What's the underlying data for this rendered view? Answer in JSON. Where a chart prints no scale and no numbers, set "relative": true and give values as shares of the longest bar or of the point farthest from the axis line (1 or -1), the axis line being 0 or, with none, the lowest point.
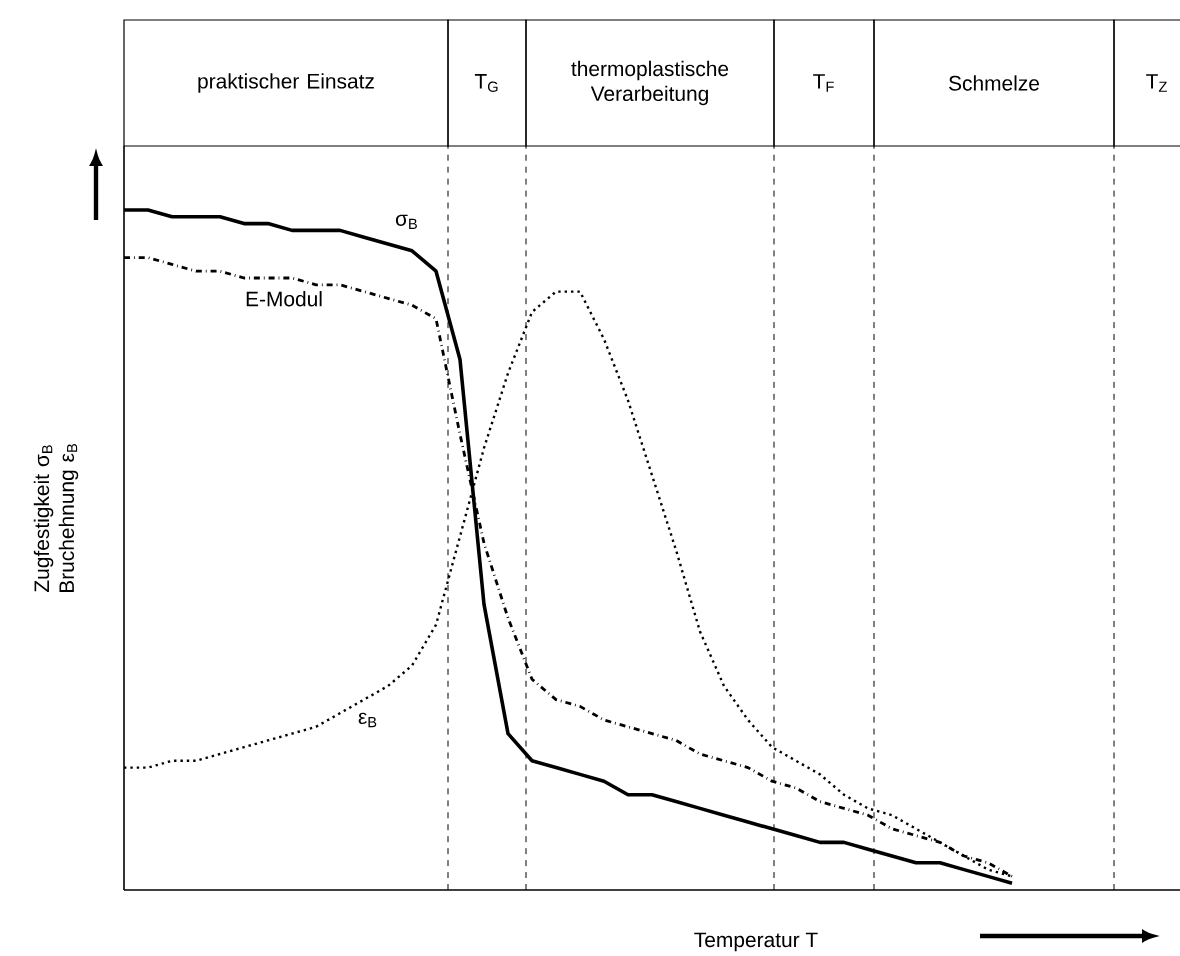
{
  "chart_data": {
    "type": "line",
    "relative": true,
    "xlabel": "Temperatur T",
    "ylabel": "Zugfestigkeit σ$_{B}$ Bruchehnung ε$_{B}$",
    "categories": [
      null,
      null,
      null,
      null,
      null,
      null,
      null,
      null,
      null,
      null,
      null,
      null,
      null,
      null,
      null,
      null,
      null,
      null,
      null,
      null,
      null,
      null,
      null,
      null,
      null,
      null,
      null,
      null,
      null,
      null,
      null,
      null,
      null,
      null,
      null,
      null,
      null,
      null,
      null,
      null,
      null,
      null,
      null,
      null
    ],
    "annotations": [
      "praktischer Einsatz",
      "T$_{G}$",
      "thermoplastische Verarbeitung",
      "T$_{F}$",
      "Schmelze",
      "T$_{Z}$"
    ],
    "series": [
      {
        "name": "σ$_{B}$",
        "color": "#000000",
        "line_style": "solid",
        "values": [
          1.0,
          1.0,
          0.99,
          0.99,
          0.99,
          0.98,
          0.98,
          0.97,
          0.97,
          0.97,
          0.96,
          0.95,
          0.94,
          0.91,
          0.78,
          0.42,
          0.23,
          0.19,
          0.18,
          0.17,
          0.16,
          0.14,
          0.14,
          0.13,
          0.12,
          0.11,
          0.1,
          0.09,
          0.08,
          0.07,
          0.07,
          0.06,
          0.05,
          0.04,
          0.04,
          0.03,
          0.02,
          0.01,
          null,
          null,
          null,
          null,
          null,
          null
        ]
      },
      {
        "name": "E-Modul",
        "color": "#000000",
        "line_style": "dashdot",
        "values": [
          0.93,
          0.93,
          0.92,
          0.91,
          0.91,
          0.9,
          0.9,
          0.9,
          0.89,
          0.89,
          0.88,
          0.87,
          0.86,
          0.84,
          0.67,
          0.51,
          0.4,
          0.31,
          0.28,
          0.27,
          0.25,
          0.24,
          0.23,
          0.22,
          0.2,
          0.19,
          0.18,
          0.16,
          0.15,
          0.13,
          0.12,
          0.11,
          0.09,
          0.08,
          0.07,
          0.05,
          0.04,
          0.02,
          null,
          null,
          null,
          null,
          null,
          null
        ]
      },
      {
        "name": "ε$_{B}$",
        "color": "#000000",
        "line_style": "dotted",
        "values": [
          0.18,
          0.18,
          0.19,
          0.19,
          0.2,
          0.21,
          0.22,
          0.23,
          0.24,
          0.26,
          0.28,
          0.3,
          0.33,
          0.39,
          0.52,
          0.65,
          0.76,
          0.85,
          0.88,
          0.88,
          0.81,
          0.72,
          0.61,
          0.5,
          0.38,
          0.3,
          0.25,
          0.21,
          0.19,
          0.17,
          0.14,
          0.12,
          0.11,
          0.09,
          0.07,
          0.05,
          0.03,
          0.02,
          null,
          null,
          null,
          null,
          null,
          null
        ]
      }
    ]
  }
}
